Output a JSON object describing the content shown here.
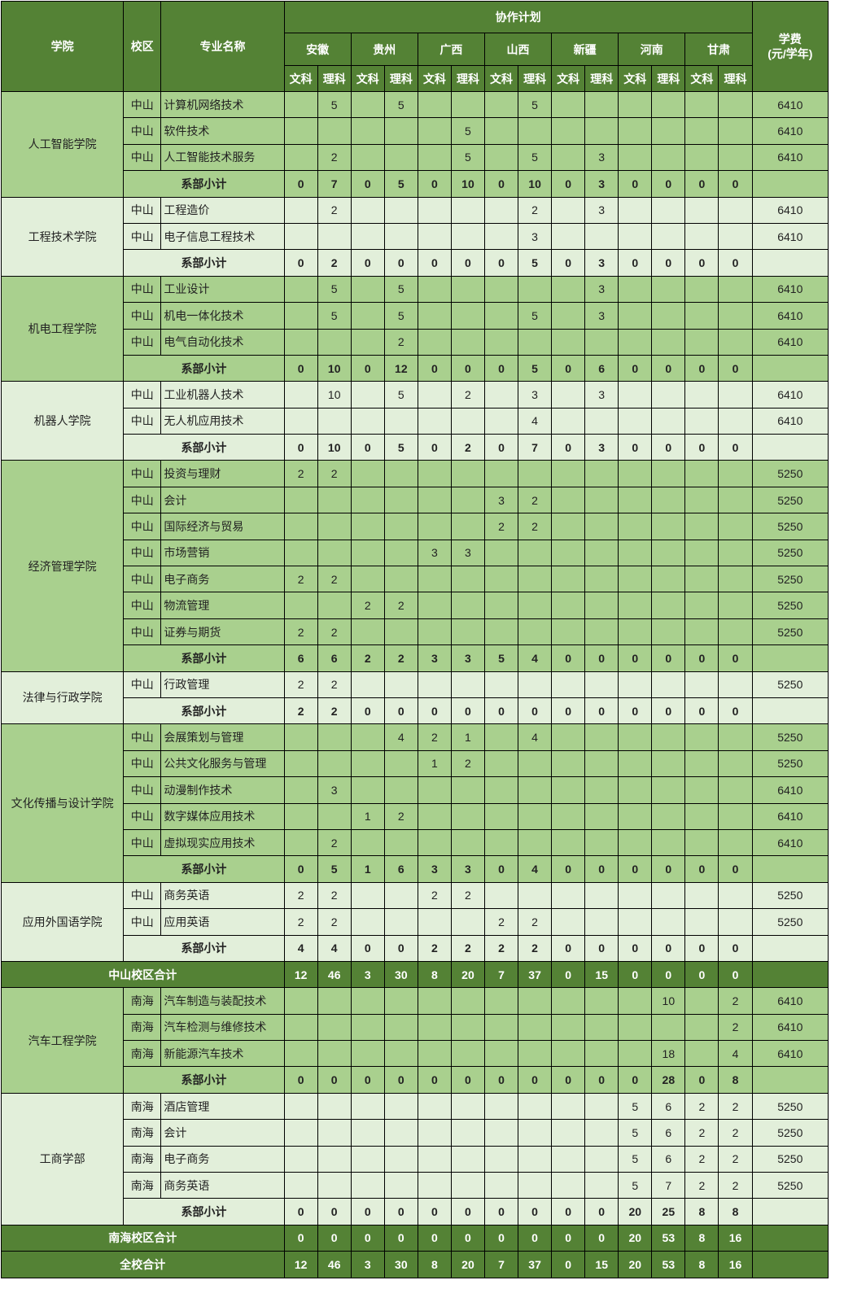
{
  "colors": {
    "header": "#548235",
    "dark_band": "#a9d08e",
    "light_band": "#e2efda"
  },
  "header": {
    "college": "学院",
    "campus": "校区",
    "major": "专业名称",
    "plan": "协作计划",
    "fee": "学费\n(元/学年)",
    "provinces": [
      "安徽",
      "贵州",
      "广西",
      "山西",
      "新疆",
      "河南",
      "甘肃"
    ],
    "arts": "文科",
    "science": "理科"
  },
  "subtotal_label": "系部小计",
  "groups": [
    {
      "type": "college",
      "name": "人工智能学院",
      "band": "dark",
      "majors": [
        {
          "campus": "中山",
          "name": "计算机网络技术",
          "values": [
            "",
            "5",
            "",
            "5",
            "",
            "",
            "",
            "5",
            "",
            "",
            "",
            "",
            "",
            ""
          ],
          "fee": "6410"
        },
        {
          "campus": "中山",
          "name": "软件技术",
          "values": [
            "",
            "",
            "",
            "",
            "",
            "5",
            "",
            "",
            "",
            "",
            "",
            "",
            "",
            ""
          ],
          "fee": "6410"
        },
        {
          "campus": "中山",
          "name": "人工智能技术服务",
          "values": [
            "",
            "2",
            "",
            "",
            "",
            "5",
            "",
            "5",
            "",
            "3",
            "",
            "",
            "",
            ""
          ],
          "fee": "6410"
        }
      ],
      "subtotal": [
        "0",
        "7",
        "0",
        "5",
        "0",
        "10",
        "0",
        "10",
        "0",
        "3",
        "0",
        "0",
        "0",
        "0"
      ]
    },
    {
      "type": "college",
      "name": "工程技术学院",
      "band": "light",
      "majors": [
        {
          "campus": "中山",
          "name": "工程造价",
          "values": [
            "",
            "2",
            "",
            "",
            "",
            "",
            "",
            "2",
            "",
            "3",
            "",
            "",
            "",
            ""
          ],
          "fee": "6410"
        },
        {
          "campus": "中山",
          "name": "电子信息工程技术",
          "values": [
            "",
            "",
            "",
            "",
            "",
            "",
            "",
            "3",
            "",
            "",
            "",
            "",
            "",
            ""
          ],
          "fee": "6410"
        }
      ],
      "subtotal": [
        "0",
        "2",
        "0",
        "0",
        "0",
        "0",
        "0",
        "5",
        "0",
        "3",
        "0",
        "0",
        "0",
        "0"
      ]
    },
    {
      "type": "college",
      "name": "机电工程学院",
      "band": "dark",
      "majors": [
        {
          "campus": "中山",
          "name": "工业设计",
          "values": [
            "",
            "5",
            "",
            "5",
            "",
            "",
            "",
            "",
            "",
            "3",
            "",
            "",
            "",
            ""
          ],
          "fee": "6410"
        },
        {
          "campus": "中山",
          "name": "机电一体化技术",
          "values": [
            "",
            "5",
            "",
            "5",
            "",
            "",
            "",
            "5",
            "",
            "3",
            "",
            "",
            "",
            ""
          ],
          "fee": "6410"
        },
        {
          "campus": "中山",
          "name": "电气自动化技术",
          "values": [
            "",
            "",
            "",
            "2",
            "",
            "",
            "",
            "",
            "",
            "",
            "",
            "",
            "",
            ""
          ],
          "fee": "6410"
        }
      ],
      "subtotal": [
        "0",
        "10",
        "0",
        "12",
        "0",
        "0",
        "0",
        "5",
        "0",
        "6",
        "0",
        "0",
        "0",
        "0"
      ]
    },
    {
      "type": "college",
      "name": "机器人学院",
      "band": "light",
      "majors": [
        {
          "campus": "中山",
          "name": "工业机器人技术",
          "values": [
            "",
            "10",
            "",
            "5",
            "",
            "2",
            "",
            "3",
            "",
            "3",
            "",
            "",
            "",
            ""
          ],
          "fee": "6410"
        },
        {
          "campus": "中山",
          "name": "无人机应用技术",
          "values": [
            "",
            "",
            "",
            "",
            "",
            "",
            "",
            "4",
            "",
            "",
            "",
            "",
            "",
            ""
          ],
          "fee": "6410"
        }
      ],
      "subtotal": [
        "0",
        "10",
        "0",
        "5",
        "0",
        "2",
        "0",
        "7",
        "0",
        "3",
        "0",
        "0",
        "0",
        "0"
      ]
    },
    {
      "type": "college",
      "name": "经济管理学院",
      "band": "dark",
      "majors": [
        {
          "campus": "中山",
          "name": "投资与理财",
          "values": [
            "2",
            "2",
            "",
            "",
            "",
            "",
            "",
            "",
            "",
            "",
            "",
            "",
            "",
            ""
          ],
          "fee": "5250"
        },
        {
          "campus": "中山",
          "name": "会计",
          "values": [
            "",
            "",
            "",
            "",
            "",
            "",
            "3",
            "2",
            "",
            "",
            "",
            "",
            "",
            ""
          ],
          "fee": "5250"
        },
        {
          "campus": "中山",
          "name": "国际经济与贸易",
          "values": [
            "",
            "",
            "",
            "",
            "",
            "",
            "2",
            "2",
            "",
            "",
            "",
            "",
            "",
            ""
          ],
          "fee": "5250"
        },
        {
          "campus": "中山",
          "name": "市场营销",
          "values": [
            "",
            "",
            "",
            "",
            "3",
            "3",
            "",
            "",
            "",
            "",
            "",
            "",
            "",
            ""
          ],
          "fee": "5250"
        },
        {
          "campus": "中山",
          "name": "电子商务",
          "values": [
            "2",
            "2",
            "",
            "",
            "",
            "",
            "",
            "",
            "",
            "",
            "",
            "",
            "",
            ""
          ],
          "fee": "5250"
        },
        {
          "campus": "中山",
          "name": "物流管理",
          "values": [
            "",
            "",
            "2",
            "2",
            "",
            "",
            "",
            "",
            "",
            "",
            "",
            "",
            "",
            ""
          ],
          "fee": "5250"
        },
        {
          "campus": "中山",
          "name": "证券与期货",
          "values": [
            "2",
            "2",
            "",
            "",
            "",
            "",
            "",
            "",
            "",
            "",
            "",
            "",
            "",
            ""
          ],
          "fee": "5250"
        }
      ],
      "subtotal": [
        "6",
        "6",
        "2",
        "2",
        "3",
        "3",
        "5",
        "4",
        "0",
        "0",
        "0",
        "0",
        "0",
        "0"
      ]
    },
    {
      "type": "college",
      "name": "法律与行政学院",
      "band": "light",
      "majors": [
        {
          "campus": "中山",
          "name": "行政管理",
          "values": [
            "2",
            "2",
            "",
            "",
            "",
            "",
            "",
            "",
            "",
            "",
            "",
            "",
            "",
            ""
          ],
          "fee": "5250"
        }
      ],
      "subtotal": [
        "2",
        "2",
        "0",
        "0",
        "0",
        "0",
        "0",
        "0",
        "0",
        "0",
        "0",
        "0",
        "0",
        "0"
      ]
    },
    {
      "type": "college",
      "name": "文化传播与设计学院",
      "band": "dark",
      "majors": [
        {
          "campus": "中山",
          "name": "会展策划与管理",
          "values": [
            "",
            "",
            "",
            "4",
            "2",
            "1",
            "",
            "4",
            "",
            "",
            "",
            "",
            "",
            ""
          ],
          "fee": "5250"
        },
        {
          "campus": "中山",
          "name": "公共文化服务与管理",
          "values": [
            "",
            "",
            "",
            "",
            "1",
            "2",
            "",
            "",
            "",
            "",
            "",
            "",
            "",
            ""
          ],
          "fee": "5250"
        },
        {
          "campus": "中山",
          "name": "动漫制作技术",
          "values": [
            "",
            "3",
            "",
            "",
            "",
            "",
            "",
            "",
            "",
            "",
            "",
            "",
            "",
            ""
          ],
          "fee": "6410"
        },
        {
          "campus": "中山",
          "name": "数字媒体应用技术",
          "values": [
            "",
            "",
            "1",
            "2",
            "",
            "",
            "",
            "",
            "",
            "",
            "",
            "",
            "",
            ""
          ],
          "fee": "6410"
        },
        {
          "campus": "中山",
          "name": "虚拟现实应用技术",
          "values": [
            "",
            "2",
            "",
            "",
            "",
            "",
            "",
            "",
            "",
            "",
            "",
            "",
            "",
            ""
          ],
          "fee": "6410"
        }
      ],
      "subtotal": [
        "0",
        "5",
        "1",
        "6",
        "3",
        "3",
        "0",
        "4",
        "0",
        "0",
        "0",
        "0",
        "0",
        "0"
      ]
    },
    {
      "type": "college",
      "name": "应用外国语学院",
      "band": "light",
      "majors": [
        {
          "campus": "中山",
          "name": "商务英语",
          "values": [
            "2",
            "2",
            "",
            "",
            "2",
            "2",
            "",
            "",
            "",
            "",
            "",
            "",
            "",
            ""
          ],
          "fee": "5250"
        },
        {
          "campus": "中山",
          "name": "应用英语",
          "values": [
            "2",
            "2",
            "",
            "",
            "",
            "",
            "2",
            "2",
            "",
            "",
            "",
            "",
            "",
            ""
          ],
          "fee": "5250"
        }
      ],
      "subtotal": [
        "4",
        "4",
        "0",
        "0",
        "2",
        "2",
        "2",
        "2",
        "0",
        "0",
        "0",
        "0",
        "0",
        "0"
      ]
    },
    {
      "type": "total",
      "label": "中山校区合计",
      "values": [
        "12",
        "46",
        "3",
        "30",
        "8",
        "20",
        "7",
        "37",
        "0",
        "15",
        "0",
        "0",
        "0",
        "0"
      ]
    },
    {
      "type": "college",
      "name": "汽车工程学院",
      "band": "dark",
      "majors": [
        {
          "campus": "南海",
          "name": "汽车制造与装配技术",
          "values": [
            "",
            "",
            "",
            "",
            "",
            "",
            "",
            "",
            "",
            "",
            "",
            "10",
            "",
            "2"
          ],
          "fee": "6410"
        },
        {
          "campus": "南海",
          "name": "汽车检测与维修技术",
          "values": [
            "",
            "",
            "",
            "",
            "",
            "",
            "",
            "",
            "",
            "",
            "",
            "",
            "",
            "2"
          ],
          "fee": "6410"
        },
        {
          "campus": "南海",
          "name": "新能源汽车技术",
          "values": [
            "",
            "",
            "",
            "",
            "",
            "",
            "",
            "",
            "",
            "",
            "",
            "18",
            "",
            "4"
          ],
          "fee": "6410"
        }
      ],
      "subtotal": [
        "0",
        "0",
        "0",
        "0",
        "0",
        "0",
        "0",
        "0",
        "0",
        "0",
        "0",
        "28",
        "0",
        "8"
      ]
    },
    {
      "type": "college",
      "name": "工商学部",
      "band": "light",
      "majors": [
        {
          "campus": "南海",
          "name": "酒店管理",
          "values": [
            "",
            "",
            "",
            "",
            "",
            "",
            "",
            "",
            "",
            "",
            "5",
            "6",
            "2",
            "2"
          ],
          "fee": "5250"
        },
        {
          "campus": "南海",
          "name": "会计",
          "values": [
            "",
            "",
            "",
            "",
            "",
            "",
            "",
            "",
            "",
            "",
            "5",
            "6",
            "2",
            "2"
          ],
          "fee": "5250"
        },
        {
          "campus": "南海",
          "name": "电子商务",
          "values": [
            "",
            "",
            "",
            "",
            "",
            "",
            "",
            "",
            "",
            "",
            "5",
            "6",
            "2",
            "2"
          ],
          "fee": "5250"
        },
        {
          "campus": "南海",
          "name": "商务英语",
          "values": [
            "",
            "",
            "",
            "",
            "",
            "",
            "",
            "",
            "",
            "",
            "5",
            "7",
            "2",
            "2"
          ],
          "fee": "5250"
        }
      ],
      "subtotal": [
        "0",
        "0",
        "0",
        "0",
        "0",
        "0",
        "0",
        "0",
        "0",
        "0",
        "20",
        "25",
        "8",
        "8"
      ]
    },
    {
      "type": "total",
      "label": "南海校区合计",
      "values": [
        "0",
        "0",
        "0",
        "0",
        "0",
        "0",
        "0",
        "0",
        "0",
        "0",
        "20",
        "53",
        "8",
        "16"
      ]
    },
    {
      "type": "total",
      "label": "全校合计",
      "values": [
        "12",
        "46",
        "3",
        "30",
        "8",
        "20",
        "7",
        "37",
        "0",
        "15",
        "20",
        "53",
        "8",
        "16"
      ]
    }
  ]
}
